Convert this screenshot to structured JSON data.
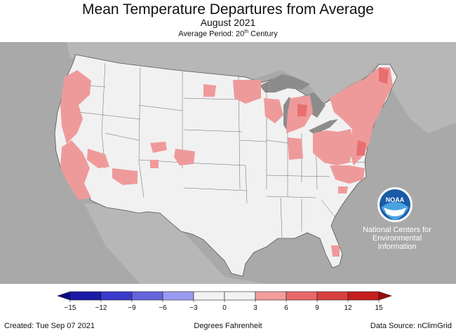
{
  "header": {
    "title": "Mean Temperature Departures from Average",
    "subtitle": "August 2021",
    "period_prefix": "Average Period: 20",
    "period_sup": "th",
    "period_suffix": " Century"
  },
  "legend": {
    "ticks": [
      "−15",
      "−12",
      "−9",
      "−6",
      "−3",
      "0",
      "3",
      "6",
      "9",
      "12",
      "15"
    ],
    "colors": [
      "#1a1aa6",
      "#3a3acb",
      "#6464dc",
      "#9a9af0",
      "#f2f2f2",
      "#f2f2f2",
      "#f29c9c",
      "#e86868",
      "#d84040",
      "#c51e1e"
    ]
  },
  "colors": {
    "background_gray": "#a9a9a9",
    "land": "#f1f1f1",
    "warm_anomaly": "#ef9a9a",
    "warmer_anomaly": "#e87373",
    "lakes": "#8c8c8c",
    "noaa_blue": "#1b5aa5"
  },
  "logo": {
    "text": "NOAA",
    "caption_line1": "National Centers for",
    "caption_line2": "Environmental",
    "caption_line3": "Information"
  },
  "footer": {
    "created": "Created: Tue Sep 07 2021",
    "units": "Degrees Fahrenheit",
    "source": "Data Source: nClimGrid"
  }
}
